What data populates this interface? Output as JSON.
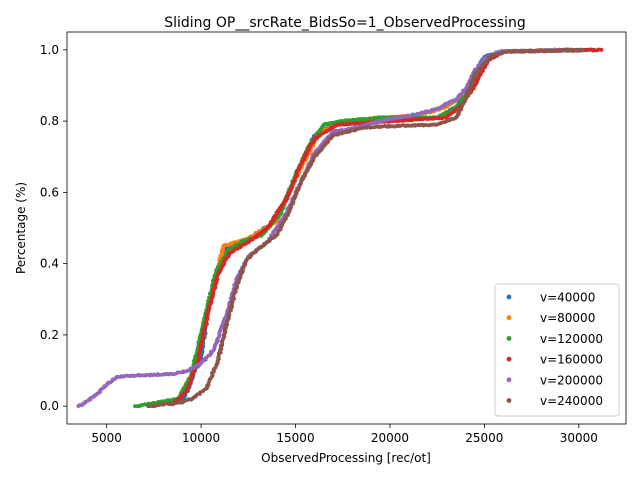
{
  "chart_data": {
    "type": "scatter",
    "title": "Sliding OP__srcRate_BidsSo=1_ObservedProcessing",
    "xlabel": "ObservedProcessing [rec/ot]",
    "ylabel": "Percentage (%)",
    "xlim": [
      2900,
      32500
    ],
    "ylim": [
      -0.05,
      1.05
    ],
    "xticks": [
      5000,
      10000,
      15000,
      20000,
      25000,
      30000
    ],
    "xtick_labels": [
      "5000",
      "10000",
      "15000",
      "20000",
      "25000",
      "30000"
    ],
    "yticks": [
      0.0,
      0.2,
      0.4,
      0.6,
      0.8,
      1.0
    ],
    "ytick_labels": [
      "0.0",
      "0.2",
      "0.4",
      "0.6",
      "0.8",
      "1.0"
    ],
    "grid": false,
    "legend_position": "lower right",
    "series": [
      {
        "name": "v=40000",
        "color": "#1f77b4",
        "points": [
          [
            9000,
            0.01
          ],
          [
            10000,
            0.14
          ],
          [
            10600,
            0.33
          ],
          [
            11200,
            0.44
          ],
          [
            12500,
            0.47
          ],
          [
            14000,
            0.52
          ],
          [
            15000,
            0.64
          ],
          [
            16000,
            0.76
          ],
          [
            17000,
            0.79
          ],
          [
            22500,
            0.81
          ],
          [
            23500,
            0.84
          ],
          [
            24000,
            0.88
          ],
          [
            24500,
            0.94
          ],
          [
            25000,
            0.98
          ],
          [
            26000,
            0.995
          ],
          [
            30800,
            1.0
          ]
        ]
      },
      {
        "name": "v=80000",
        "color": "#ff7f0e",
        "points": [
          [
            7800,
            0.005
          ],
          [
            8800,
            0.02
          ],
          [
            9600,
            0.1
          ],
          [
            10100,
            0.2
          ],
          [
            10600,
            0.33
          ],
          [
            11200,
            0.45
          ],
          [
            12500,
            0.47
          ],
          [
            14000,
            0.52
          ],
          [
            15200,
            0.66
          ],
          [
            16300,
            0.77
          ],
          [
            17800,
            0.8
          ],
          [
            19500,
            0.81
          ],
          [
            21500,
            0.815
          ],
          [
            23000,
            0.84
          ],
          [
            24000,
            0.88
          ],
          [
            25000,
            0.97
          ],
          [
            26000,
            0.995
          ],
          [
            29000,
            1.0
          ]
        ]
      },
      {
        "name": "v=120000",
        "color": "#2ca02c",
        "points": [
          [
            6500,
            0.0
          ],
          [
            8800,
            0.02
          ],
          [
            9500,
            0.09
          ],
          [
            10200,
            0.25
          ],
          [
            10800,
            0.38
          ],
          [
            11500,
            0.44
          ],
          [
            12300,
            0.465
          ],
          [
            13200,
            0.48
          ],
          [
            14200,
            0.54
          ],
          [
            15000,
            0.65
          ],
          [
            15700,
            0.73
          ],
          [
            16500,
            0.79
          ],
          [
            17500,
            0.8
          ],
          [
            19500,
            0.81
          ],
          [
            22500,
            0.81
          ],
          [
            23300,
            0.83
          ],
          [
            24000,
            0.87
          ],
          [
            25000,
            0.97
          ],
          [
            26000,
            0.995
          ]
        ]
      },
      {
        "name": "v=160000",
        "color": "#d62728",
        "points": [
          [
            8500,
            0.005
          ],
          [
            9200,
            0.04
          ],
          [
            9800,
            0.12
          ],
          [
            10300,
            0.25
          ],
          [
            10900,
            0.37
          ],
          [
            11500,
            0.43
          ],
          [
            12500,
            0.46
          ],
          [
            13500,
            0.5
          ],
          [
            14500,
            0.58
          ],
          [
            15200,
            0.67
          ],
          [
            16000,
            0.75
          ],
          [
            17200,
            0.79
          ],
          [
            23000,
            0.81
          ],
          [
            23700,
            0.84
          ],
          [
            24500,
            0.9
          ],
          [
            25200,
            0.97
          ],
          [
            26000,
            0.995
          ],
          [
            31200,
            1.0
          ]
        ]
      },
      {
        "name": "v=200000",
        "color": "#9467bd",
        "points": [
          [
            3500,
            0.0
          ],
          [
            4000,
            0.015
          ],
          [
            4500,
            0.035
          ],
          [
            5000,
            0.06
          ],
          [
            5500,
            0.08
          ],
          [
            6000,
            0.085
          ],
          [
            8500,
            0.09
          ],
          [
            9300,
            0.1
          ],
          [
            10000,
            0.12
          ],
          [
            10700,
            0.16
          ],
          [
            11300,
            0.25
          ],
          [
            11900,
            0.36
          ],
          [
            12500,
            0.42
          ],
          [
            13500,
            0.46
          ],
          [
            14500,
            0.54
          ],
          [
            15300,
            0.63
          ],
          [
            16000,
            0.71
          ],
          [
            17000,
            0.77
          ],
          [
            18500,
            0.785
          ],
          [
            19500,
            0.8
          ],
          [
            20500,
            0.81
          ],
          [
            21500,
            0.82
          ],
          [
            22500,
            0.835
          ],
          [
            23500,
            0.86
          ],
          [
            24000,
            0.89
          ],
          [
            24500,
            0.94
          ],
          [
            25000,
            0.975
          ],
          [
            25800,
            0.995
          ],
          [
            29500,
            1.0
          ]
        ]
      },
      {
        "name": "v=240000",
        "color": "#8c564b",
        "points": [
          [
            7200,
            0.0
          ],
          [
            8800,
            0.01
          ],
          [
            9500,
            0.02
          ],
          [
            10300,
            0.05
          ],
          [
            10900,
            0.13
          ],
          [
            11400,
            0.24
          ],
          [
            11900,
            0.34
          ],
          [
            12400,
            0.41
          ],
          [
            13000,
            0.44
          ],
          [
            14000,
            0.48
          ],
          [
            14700,
            0.55
          ],
          [
            15300,
            0.63
          ],
          [
            16000,
            0.7
          ],
          [
            17000,
            0.76
          ],
          [
            18500,
            0.78
          ],
          [
            19500,
            0.785
          ],
          [
            22500,
            0.79
          ],
          [
            23500,
            0.81
          ],
          [
            24000,
            0.86
          ],
          [
            24500,
            0.93
          ],
          [
            25300,
            0.98
          ],
          [
            26100,
            0.995
          ],
          [
            30200,
            1.0
          ]
        ]
      }
    ]
  }
}
